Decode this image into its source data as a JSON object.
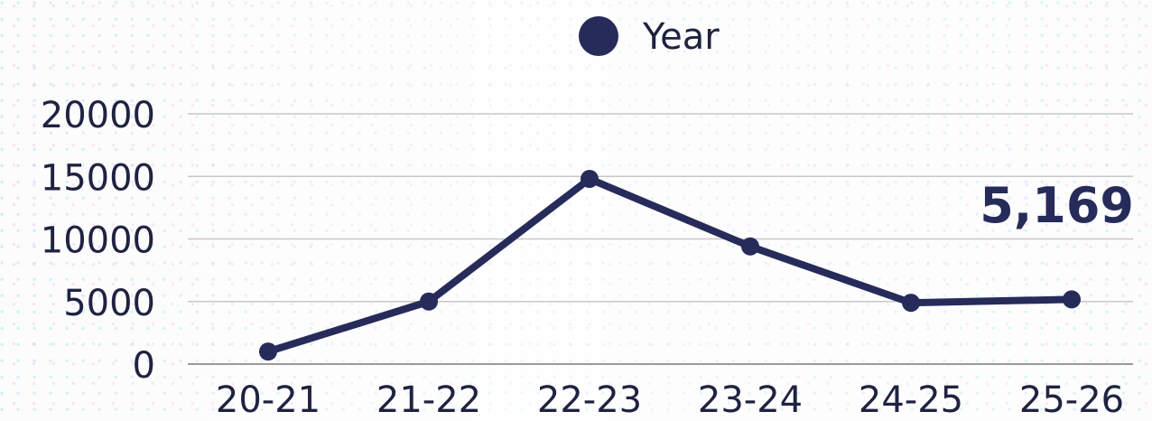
{
  "chart_data": {
    "type": "line",
    "categories": [
      "20-21",
      "21-22",
      "22-23",
      "23-24",
      "24-25",
      "25-26"
    ],
    "series": [
      {
        "name": "Year",
        "values": [
          1000,
          5000,
          14800,
          9400,
          4900,
          5169
        ]
      }
    ],
    "y_ticks": [
      "0",
      "5000",
      "10000",
      "15000",
      "20000"
    ],
    "ylim": [
      0,
      20000
    ],
    "grid": true,
    "legend": {
      "position": "top-center",
      "label": "Year"
    },
    "annotation": {
      "text": "5,169",
      "category": "25-26"
    },
    "colors": {
      "line": "#262b5a",
      "grid": "#c8c8c8",
      "text": "#1f2240"
    }
  }
}
